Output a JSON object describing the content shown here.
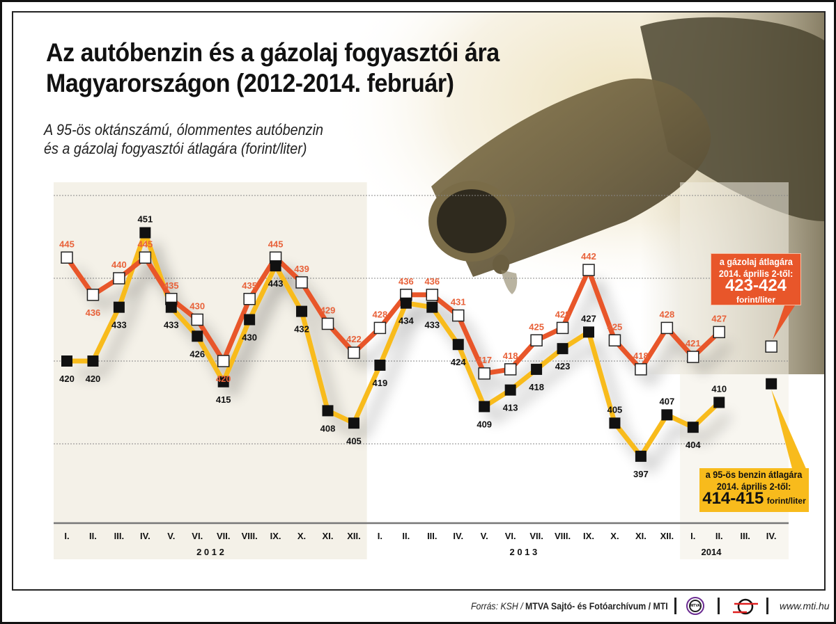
{
  "title_line1": "Az autóbenzin és a gázolaj fogyasztói ára",
  "title_line2": "Magyarországon (2012-2014. február)",
  "subtitle_line1": "A 95-ös oktánszámú, ólommentes autóbenzin",
  "subtitle_line2": "és a gázolaj fogyasztói átlagára (forint/liter)",
  "colors": {
    "diesel": "#e8562a",
    "diesel_label": "#e8623a",
    "benzin": "#f8bb1c",
    "panel": "#f2efe4",
    "gridline": "#888888"
  },
  "callouts": {
    "diesel": {
      "line1": "a gázolaj átlagára",
      "line2": "2014. április 2-től:",
      "value": "423-424",
      "unit": "forint/liter"
    },
    "benzin": {
      "line1": "a 95-ös benzin átlagára",
      "line2": "2014. április 2-től:",
      "value": "414-415",
      "unit": "forint/liter"
    }
  },
  "footer": {
    "source_prefix": "Forrás: KSH / ",
    "source_bold": "MTVA Sajtó- és Fotóarchívum / MTI",
    "mtva_logo_text": "MTVA",
    "url": "www.mti.hu"
  },
  "chart_data": {
    "type": "line",
    "title": "Az autóbenzin és a gázolaj fogyasztói ára Magyarországon (2012-2014. február)",
    "subtitle": "A 95-ös oktánszámú, ólommentes autóbenzin és a gázolaj fogyasztói átlagára (forint/liter)",
    "xlabel": "",
    "ylabel": "forint/liter",
    "ylim": [
      385,
      473
    ],
    "gridlines": [
      400,
      420,
      440,
      460
    ],
    "grid": true,
    "categories": [
      "I.",
      "II.",
      "III.",
      "IV.",
      "V.",
      "VI.",
      "VII.",
      "VIII.",
      "IX.",
      "X.",
      "XI.",
      "XII.",
      "I.",
      "II.",
      "III.",
      "IV.",
      "V.",
      "VI.",
      "VII.",
      "VIII.",
      "IX.",
      "X.",
      "XI.",
      "XII.",
      "I.",
      "II.",
      "III.",
      "IV."
    ],
    "year_groups": [
      {
        "label": "2 0 1 2",
        "start": 0,
        "end": 11
      },
      {
        "label": "2 0 1 3",
        "start": 12,
        "end": 23
      },
      {
        "label": "2014",
        "start": 24,
        "end": 27
      }
    ],
    "series": [
      {
        "name": "gázolaj",
        "marker": "white-square",
        "values": [
          445,
          436,
          440,
          445,
          435,
          430,
          420,
          435,
          445,
          439,
          429,
          422,
          428,
          436,
          436,
          431,
          417,
          418,
          425,
          428,
          442,
          425,
          418,
          428,
          421,
          427,
          null,
          null
        ],
        "forecast": {
          "index": 27,
          "value": 423.5,
          "label": "423-424"
        }
      },
      {
        "name": "95-ös benzin",
        "marker": "black-square",
        "values": [
          420,
          420,
          433,
          451,
          433,
          426,
          415,
          430,
          443,
          432,
          408,
          405,
          419,
          434,
          433,
          424,
          409,
          413,
          418,
          423,
          427,
          405,
          397,
          407,
          404,
          410,
          null,
          null
        ],
        "forecast": {
          "index": 27,
          "value": 414.5,
          "label": "414-415"
        }
      }
    ]
  }
}
